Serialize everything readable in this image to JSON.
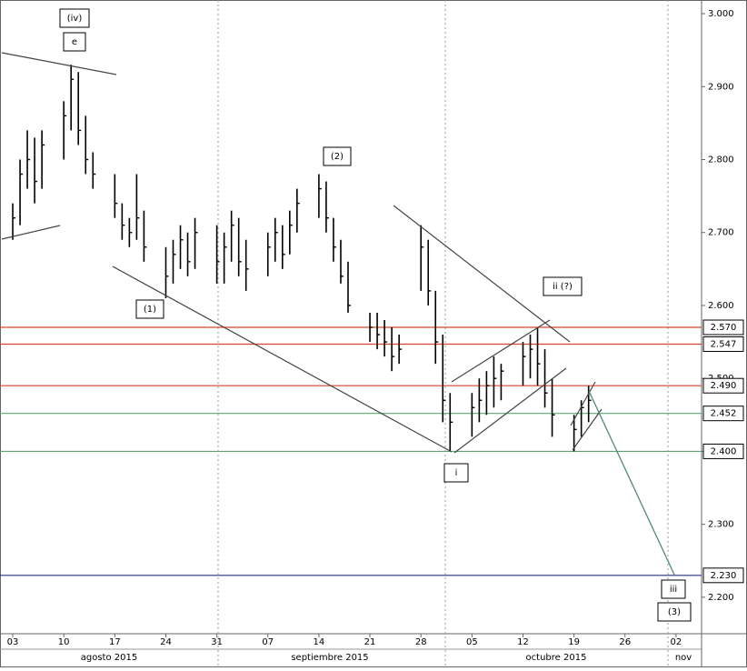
{
  "chart_data": {
    "type": "ohlc",
    "color": "#000000",
    "x": [
      0,
      1,
      2,
      3,
      4,
      7,
      8,
      9,
      10,
      11,
      14,
      15,
      16,
      17,
      18,
      21,
      22,
      23,
      24,
      25,
      28,
      29,
      30,
      31,
      32,
      35,
      36,
      37,
      38,
      39,
      42,
      43,
      44,
      45,
      46,
      49,
      50,
      51,
      52,
      53,
      56,
      57,
      58,
      59,
      60,
      63,
      64,
      65,
      66,
      67,
      70,
      71,
      72,
      73,
      74,
      77,
      78,
      79
    ],
    "high": [
      2.74,
      2.8,
      2.84,
      2.83,
      2.84,
      2.88,
      2.93,
      2.92,
      2.86,
      2.81,
      2.78,
      2.74,
      2.72,
      2.78,
      2.73,
      2.68,
      2.69,
      2.71,
      2.7,
      2.72,
      2.71,
      2.7,
      2.73,
      2.72,
      2.69,
      2.7,
      2.72,
      2.71,
      2.73,
      2.76,
      2.78,
      2.77,
      2.72,
      2.69,
      2.66,
      2.59,
      2.59,
      2.58,
      2.57,
      2.56,
      2.71,
      2.69,
      2.62,
      2.56,
      2.48,
      2.48,
      2.5,
      2.51,
      2.53,
      2.52,
      2.55,
      2.56,
      2.57,
      2.54,
      2.5,
      2.45,
      2.47,
      2.49
    ],
    "low": [
      2.69,
      2.71,
      2.76,
      2.74,
      2.76,
      2.8,
      2.84,
      2.82,
      2.78,
      2.76,
      2.72,
      2.69,
      2.68,
      2.69,
      2.66,
      2.61,
      2.63,
      2.65,
      2.64,
      2.65,
      2.63,
      2.63,
      2.66,
      2.64,
      2.62,
      2.64,
      2.66,
      2.65,
      2.67,
      2.7,
      2.72,
      2.7,
      2.66,
      2.63,
      2.59,
      2.55,
      2.54,
      2.53,
      2.51,
      2.52,
      2.62,
      2.6,
      2.52,
      2.44,
      2.4,
      2.42,
      2.44,
      2.45,
      2.46,
      2.47,
      2.49,
      2.5,
      2.49,
      2.46,
      2.42,
      2.4,
      2.42,
      2.44
    ],
    "close": [
      2.72,
      2.78,
      2.8,
      2.77,
      2.82,
      2.86,
      2.91,
      2.84,
      2.8,
      2.78,
      2.74,
      2.71,
      2.7,
      2.72,
      2.68,
      2.64,
      2.67,
      2.69,
      2.66,
      2.7,
      2.66,
      2.68,
      2.71,
      2.66,
      2.65,
      2.68,
      2.7,
      2.67,
      2.71,
      2.74,
      2.76,
      2.72,
      2.68,
      2.64,
      2.6,
      2.57,
      2.56,
      2.55,
      2.53,
      2.54,
      2.68,
      2.62,
      2.55,
      2.47,
      2.44,
      2.46,
      2.47,
      2.49,
      2.5,
      2.51,
      2.53,
      2.54,
      2.52,
      2.48,
      2.45,
      2.43,
      2.46,
      2.47
    ],
    "xlim": [
      -1.5,
      94.5
    ],
    "xticks": [
      {
        "value": 0,
        "label": "03"
      },
      {
        "value": 7,
        "label": "10"
      },
      {
        "value": 14,
        "label": "17"
      },
      {
        "value": 21,
        "label": "24"
      },
      {
        "value": 28,
        "label": "31"
      },
      {
        "value": 35,
        "label": "07"
      },
      {
        "value": 42,
        "label": "14"
      },
      {
        "value": 49,
        "label": "21"
      },
      {
        "value": 56,
        "label": "28"
      },
      {
        "value": 63,
        "label": "05"
      },
      {
        "value": 70,
        "label": "12"
      },
      {
        "value": 77,
        "label": "19"
      },
      {
        "value": 84,
        "label": "26"
      },
      {
        "value": 91,
        "label": "02"
      }
    ],
    "ylim": [
      2.15,
      3.0125
    ],
    "yticks": [
      {
        "value": 3.0,
        "label": "3.000"
      },
      {
        "value": 2.9,
        "label": "2.900"
      },
      {
        "value": 2.8,
        "label": "2.800"
      },
      {
        "value": 2.7,
        "label": "2.700"
      },
      {
        "value": 2.6,
        "label": "2.600"
      },
      {
        "value": 2.5,
        "label": "2.500"
      },
      {
        "value": 2.4,
        "label": "2.400"
      },
      {
        "value": 2.3,
        "label": "2.300"
      },
      {
        "value": 2.2,
        "label": "2.200"
      }
    ],
    "levels": [
      {
        "value": 2.57,
        "label": "2.570",
        "color": "#d9432b"
      },
      {
        "value": 2.547,
        "label": "2.547",
        "color": "#d9432b"
      },
      {
        "value": 2.49,
        "label": "2.490",
        "color": "#d9432b"
      },
      {
        "value": 2.452,
        "label": "2.452",
        "color": "#5aa86e"
      },
      {
        "value": 2.4,
        "label": "2.400",
        "color": "#5aa86e"
      },
      {
        "value": 2.23,
        "label": "2.230",
        "color": "#26307a"
      }
    ],
    "month_labels": [
      "agosto 2015",
      "septiembre 2015",
      "octubre 2015",
      "nov"
    ]
  },
  "annotations": [
    "(iv)",
    "e",
    "(1)",
    "(2)",
    "ii (?)",
    "i",
    "iii",
    "(3)"
  ]
}
